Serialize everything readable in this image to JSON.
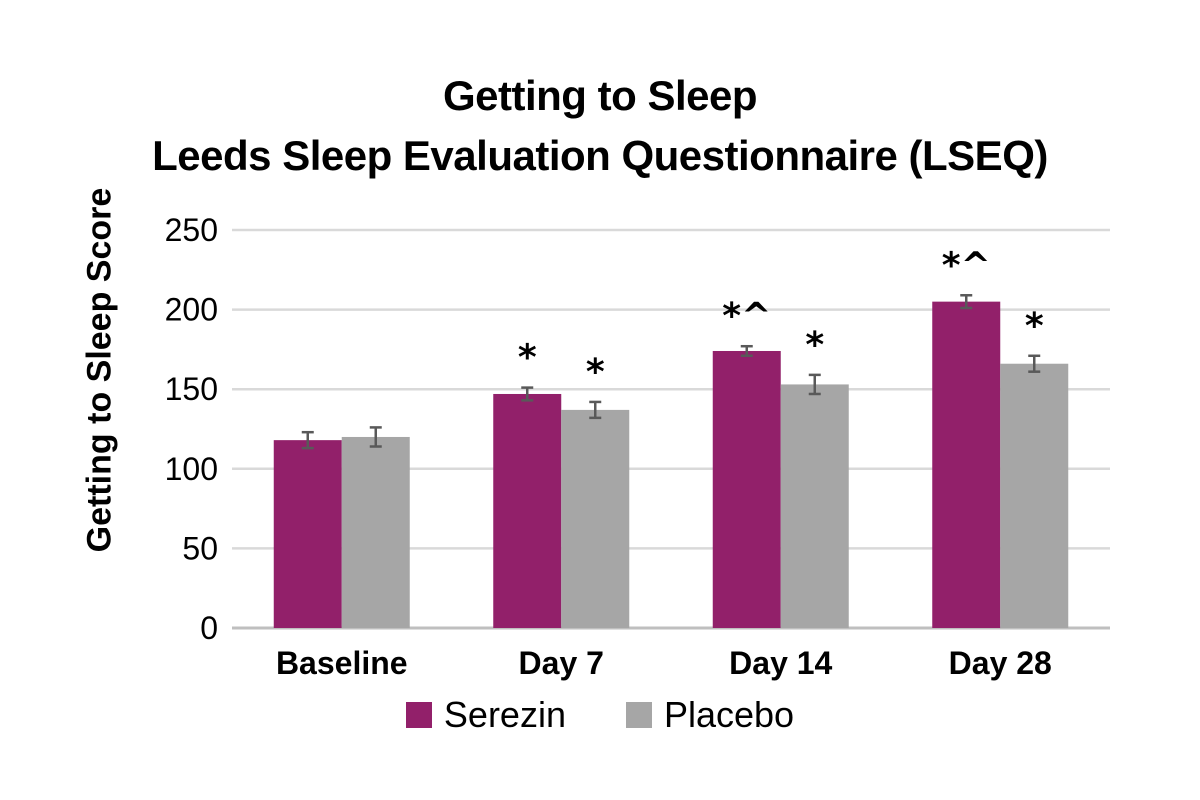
{
  "chart_data": {
    "type": "bar",
    "title": "Getting to Sleep",
    "subtitle": "Leeds Sleep Evaluation Questionnaire (LSEQ)",
    "ylabel": "Getting to Sleep Score",
    "xlabel": "",
    "ylim": [
      0,
      250
    ],
    "yticks": [
      0,
      50,
      100,
      150,
      200,
      250
    ],
    "grid": true,
    "legend_position": "bottom",
    "categories": [
      "Baseline",
      "Day 7",
      "Day 14",
      "Day 28"
    ],
    "series": [
      {
        "name": "Serezin",
        "color": "#92206a",
        "values": [
          118,
          147,
          174,
          205
        ],
        "errors": [
          5,
          4,
          3,
          4
        ],
        "annotations": [
          "",
          "*",
          "*^",
          "*^"
        ]
      },
      {
        "name": "Placebo",
        "color": "#a6a6a6",
        "values": [
          120,
          137,
          153,
          166
        ],
        "errors": [
          6,
          5,
          6,
          5
        ],
        "annotations": [
          "",
          "*",
          "*",
          "*"
        ]
      }
    ]
  }
}
